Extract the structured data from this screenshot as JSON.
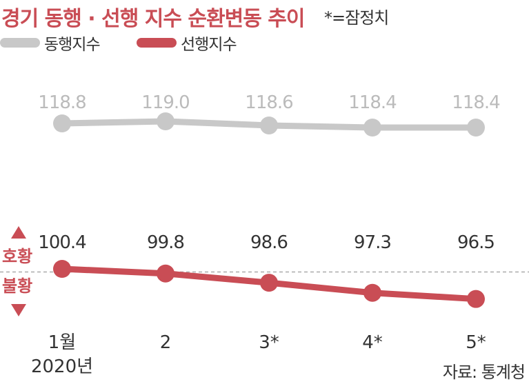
{
  "title": "경기 동행 · 선행 지수 순환변동 추이",
  "note": "*=잠정치",
  "source": "자료: 통계청",
  "indicator": {
    "up": "호황",
    "down": "불황"
  },
  "colors": {
    "coincident": "#c8c8c8",
    "leading": "#c94d55",
    "title": "#c94d55",
    "label_dark": "#333333",
    "baseline": "#aaaaaa"
  },
  "chart_data": {
    "type": "line",
    "title": "경기 동행 · 선행 지수 순환변동 추이",
    "categories": [
      "1월",
      "2",
      "3*",
      "4*",
      "5*"
    ],
    "category_sublabels": [
      "2020년",
      "",
      "",
      "",
      ""
    ],
    "series": [
      {
        "name": "동행지수",
        "values": [
          118.8,
          119.0,
          118.6,
          118.4,
          118.4
        ],
        "labels": [
          "118.8",
          "119.0",
          "118.6",
          "118.4",
          "118.4"
        ]
      },
      {
        "name": "선행지수",
        "values": [
          100.4,
          99.8,
          98.6,
          97.3,
          96.5
        ],
        "labels": [
          "100.4",
          "99.8",
          "98.6",
          "97.3",
          "96.5"
        ]
      }
    ],
    "reference_line": 100,
    "legend": "top-left",
    "grid": false
  }
}
